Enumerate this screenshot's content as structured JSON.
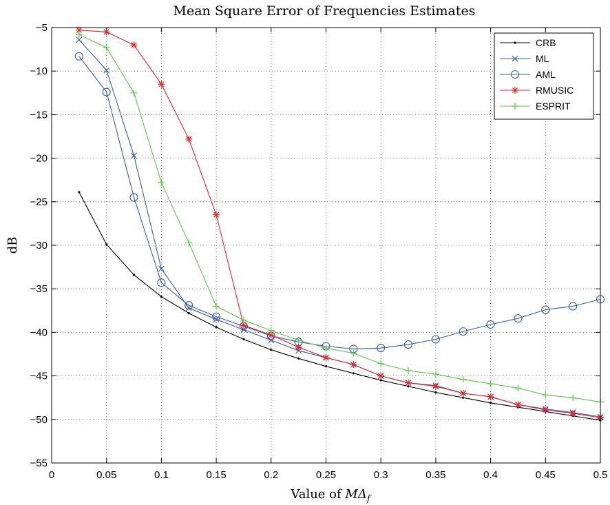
{
  "chart_data": {
    "type": "line",
    "title": "Mean Square Error of Frequencies Estimates",
    "xlabel_prefix": "Value of ",
    "xlabel_math": "MΔ",
    "xlabel_sub": "f",
    "ylabel": "dB",
    "xlim": [
      0,
      0.5
    ],
    "ylim": [
      -55,
      -5
    ],
    "xticks": [
      0,
      0.05,
      0.1,
      0.15,
      0.2,
      0.25,
      0.3,
      0.35,
      0.4,
      0.45,
      0.5
    ],
    "xtick_labels": [
      "0",
      "0.05",
      "0.1",
      "0.15",
      "0.2",
      "0.25",
      "0.3",
      "0.35",
      "0.4",
      "0.45",
      "0.5"
    ],
    "yticks": [
      -55,
      -50,
      -45,
      -40,
      -35,
      -30,
      -25,
      -20,
      -15,
      -10,
      -5
    ],
    "ytick_labels": [
      "−55",
      "−50",
      "−45",
      "−40",
      "−35",
      "−30",
      "−25",
      "−20",
      "−15",
      "−10",
      "−5"
    ],
    "grid": true,
    "legend_position": "top-right",
    "x": [
      0.025,
      0.05,
      0.075,
      0.1,
      0.125,
      0.15,
      0.175,
      0.2,
      0.225,
      0.25,
      0.275,
      0.3,
      0.325,
      0.35,
      0.375,
      0.4,
      0.425,
      0.45,
      0.475,
      0.5
    ],
    "series": [
      {
        "name": "CRB",
        "color": "#000000",
        "marker": "dot",
        "values": [
          -23.9,
          -29.9,
          -33.4,
          -35.9,
          -37.8,
          -39.4,
          -40.8,
          -42.0,
          -43.0,
          -43.9,
          -44.7,
          -45.5,
          -46.2,
          -46.9,
          -47.5,
          -48.1,
          -48.6,
          -49.1,
          -49.6,
          -50.1
        ]
      },
      {
        "name": "ML",
        "color": "#3a5ba8",
        "marker": "x",
        "values": [
          -6.4,
          -9.9,
          -19.7,
          -32.7,
          -37.2,
          -38.5,
          -39.7,
          -40.9,
          -42.1,
          -42.9,
          -43.7,
          -45.0,
          -45.8,
          -46.1,
          -47.0,
          -47.4,
          -48.3,
          -48.8,
          -49.2,
          -49.7
        ]
      },
      {
        "name": "AML",
        "color": "#3a5ba8",
        "marker": "circle",
        "values": [
          -8.3,
          -12.4,
          -24.5,
          -34.3,
          -36.9,
          -38.2,
          -39.3,
          -40.4,
          -41.1,
          -41.6,
          -41.9,
          -41.8,
          -41.4,
          -40.8,
          -39.9,
          -39.1,
          -38.4,
          -37.4,
          -37.0,
          -36.2
        ]
      },
      {
        "name": "RMUSIC",
        "color": "#e8262c",
        "marker": "star",
        "values": [
          -5.3,
          -5.5,
          -7.0,
          -11.5,
          -17.8,
          -26.5,
          -39.2,
          -40.3,
          -41.7,
          -42.9,
          -43.7,
          -45.0,
          -45.8,
          -46.2,
          -47.0,
          -47.4,
          -48.3,
          -48.9,
          -49.3,
          -49.8
        ]
      },
      {
        "name": "ESPRIT",
        "color": "#5cc84a",
        "marker": "plus",
        "values": [
          -5.8,
          -7.3,
          -12.5,
          -22.8,
          -29.7,
          -37.0,
          -38.6,
          -39.8,
          -40.9,
          -41.8,
          -42.4,
          -43.6,
          -44.4,
          -44.8,
          -45.4,
          -45.9,
          -46.4,
          -47.2,
          -47.5,
          -48.0
        ]
      }
    ]
  }
}
